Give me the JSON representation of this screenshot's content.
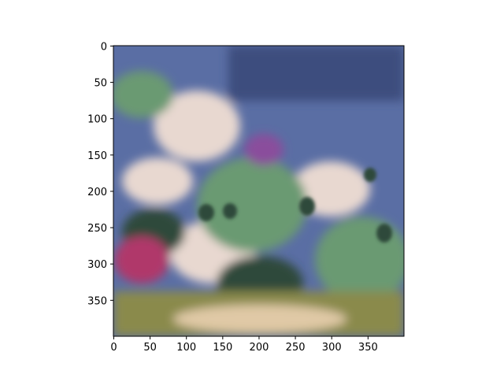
{
  "chart_data": {
    "type": "heatmap",
    "title": "",
    "xlabel": "",
    "ylabel": "",
    "image_size": [
      400,
      400
    ],
    "xlim": [
      0,
      400
    ],
    "ylim": [
      400,
      0
    ],
    "x_ticks": [
      0,
      50,
      100,
      150,
      200,
      250,
      300,
      350
    ],
    "y_ticks": [
      0,
      50,
      100,
      150,
      200,
      250,
      300,
      350
    ],
    "x_tick_labels": [
      "0",
      "50",
      "100",
      "150",
      "200",
      "250",
      "300",
      "350"
    ],
    "y_tick_labels": [
      "0",
      "50",
      "100",
      "150",
      "200",
      "250",
      "300",
      "350"
    ],
    "grid": false,
    "legend": "none",
    "content": "stylized painted landscape image (sky, clouds, trees, flowers, sandy path)"
  },
  "palette": {
    "sky": "#5a6ea4",
    "sky_dark": "#3e4d7e",
    "cloud": "#e8d8d0",
    "foliage": "#6b9a72",
    "foliage_dark": "#2f4a3a",
    "flower": "#b0386a",
    "purple": "#8a4e9c",
    "path": "#e0c9a6",
    "ground": "#8a8a4c"
  }
}
